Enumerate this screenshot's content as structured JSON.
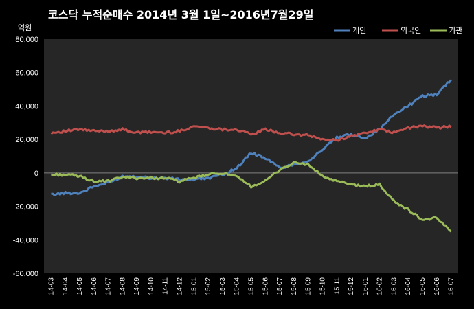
{
  "chart_data": {
    "type": "line",
    "title": "코스닥 누적순매수 2014년 3월 1일~2016년7월29일",
    "ylabel": "억원",
    "ylim": [
      -60000,
      80000
    ],
    "yticks": [
      "80,000",
      "60,000",
      "40,000",
      "20,000",
      "0",
      "-20,000",
      "-40,000",
      "-60,000"
    ],
    "grid": false,
    "legend_position": "top-right",
    "categories": [
      "14-03",
      "14-04",
      "14-05",
      "14-06",
      "14-07",
      "14-08",
      "14-09",
      "14-10",
      "14-11",
      "14-12",
      "15-01",
      "15-02",
      "15-03",
      "15-04",
      "15-05",
      "15-06",
      "15-07",
      "15-08",
      "15-09",
      "15-10",
      "15-11",
      "15-12",
      "16-01",
      "16-02",
      "16-03",
      "16-04",
      "16-05",
      "16-06",
      "16-07"
    ],
    "series": [
      {
        "name": "개인",
        "color": "#4f81bd",
        "values": [
          -13000,
          -12000,
          -12000,
          -8000,
          -6000,
          -2000,
          -2000,
          -3000,
          -3000,
          -4000,
          -4000,
          -3000,
          -1000,
          3000,
          12000,
          9000,
          3000,
          5000,
          7000,
          14000,
          21000,
          23000,
          21000,
          26000,
          35000,
          40000,
          46000,
          47000,
          56000
        ]
      },
      {
        "name": "외국인",
        "color": "#c0504d",
        "values": [
          24000,
          25000,
          26000,
          25000,
          25000,
          26000,
          24000,
          24500,
          24000,
          25000,
          28000,
          27000,
          26000,
          26000,
          23000,
          26000,
          24000,
          23000,
          22500,
          20000,
          19500,
          22000,
          24000,
          26000,
          24000,
          27000,
          28000,
          27000,
          28000
        ]
      },
      {
        "name": "기관",
        "color": "#9bbb59",
        "values": [
          -1000,
          -1000,
          -2000,
          -5000,
          -5000,
          -2500,
          -3000,
          -3000,
          -3000,
          -5000,
          -3000,
          -1000,
          0,
          -2500,
          -8000,
          -5000,
          2000,
          6000,
          5000,
          -2000,
          -5000,
          -7000,
          -8000,
          -7000,
          -17000,
          -22000,
          -28000,
          -27000,
          -35000
        ]
      }
    ]
  }
}
